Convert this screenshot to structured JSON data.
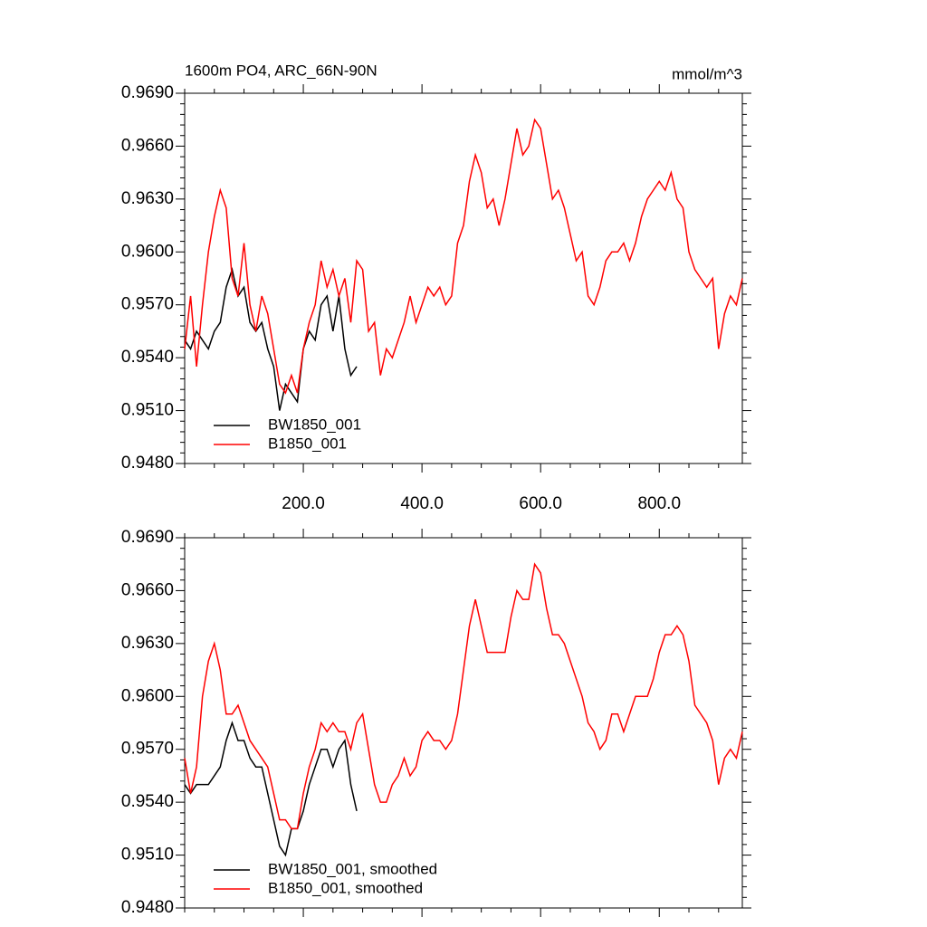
{
  "chart_data": [
    {
      "type": "line",
      "title": "1600m PO4, ARC_66N-90N",
      "units": "mmol/m^3",
      "x": [
        0,
        10,
        20,
        30,
        40,
        50,
        60,
        70,
        80,
        90,
        100,
        110,
        120,
        130,
        140,
        150,
        160,
        170,
        180,
        190,
        200,
        210,
        220,
        230,
        240,
        250,
        260,
        270,
        280,
        290,
        300,
        310,
        320,
        330,
        340,
        350,
        360,
        370,
        380,
        390,
        400,
        410,
        420,
        430,
        440,
        450,
        460,
        470,
        480,
        490,
        500,
        510,
        520,
        530,
        540,
        550,
        560,
        570,
        580,
        590,
        600,
        610,
        620,
        630,
        640,
        650,
        660,
        670,
        680,
        690,
        700,
        710,
        720,
        730,
        740,
        750,
        760,
        770,
        780,
        790,
        800,
        810,
        820,
        830,
        840,
        850,
        860,
        870,
        880,
        890,
        900,
        910,
        920,
        930,
        940
      ],
      "series": [
        {
          "name": "BW1850_001",
          "color": "#000000",
          "values": [
            0.955,
            0.9545,
            0.9555,
            0.955,
            0.9545,
            0.9555,
            0.956,
            0.958,
            0.959,
            0.9575,
            0.958,
            0.956,
            0.9555,
            0.956,
            0.9545,
            0.9535,
            0.951,
            0.9525,
            0.952,
            0.9515,
            0.9545,
            0.9555,
            0.955,
            0.957,
            0.9575,
            0.9555,
            0.9575,
            0.9545,
            0.953,
            0.9535,
            null,
            null,
            null,
            null,
            null,
            null,
            null,
            null,
            null,
            null,
            null,
            null,
            null,
            null,
            null,
            null,
            null,
            null,
            null,
            null,
            null,
            null,
            null,
            null,
            null,
            null,
            null,
            null,
            null,
            null,
            null,
            null,
            null,
            null,
            null,
            null,
            null,
            null,
            null,
            null,
            null,
            null,
            null,
            null,
            null,
            null,
            null,
            null,
            null,
            null,
            null,
            null,
            null,
            null,
            null,
            null,
            null,
            null,
            null,
            null,
            null,
            null,
            null,
            null,
            null
          ]
        },
        {
          "name": "B1850_001",
          "color": "#ff0000",
          "values": [
            0.9545,
            0.9575,
            0.9535,
            0.957,
            0.96,
            0.962,
            0.9635,
            0.9625,
            0.9585,
            0.9575,
            0.9605,
            0.957,
            0.9555,
            0.9575,
            0.9565,
            0.9545,
            0.9525,
            0.952,
            0.953,
            0.952,
            0.9545,
            0.956,
            0.957,
            0.9595,
            0.958,
            0.959,
            0.9575,
            0.9585,
            0.956,
            0.9595,
            0.959,
            0.9555,
            0.956,
            0.953,
            0.9545,
            0.954,
            0.955,
            0.956,
            0.9575,
            0.956,
            0.957,
            0.958,
            0.9575,
            0.958,
            0.957,
            0.9575,
            0.9605,
            0.9615,
            0.964,
            0.9655,
            0.9645,
            0.9625,
            0.963,
            0.9615,
            0.963,
            0.965,
            0.967,
            0.9655,
            0.966,
            0.9675,
            0.967,
            0.965,
            0.963,
            0.9635,
            0.9625,
            0.961,
            0.9595,
            0.96,
            0.9575,
            0.957,
            0.958,
            0.9595,
            0.96,
            0.96,
            0.9605,
            0.9595,
            0.9605,
            0.962,
            0.963,
            0.9635,
            0.964,
            0.9635,
            0.9645,
            0.963,
            0.9625,
            0.96,
            0.959,
            0.9585,
            0.958,
            0.9585,
            0.9545,
            0.9565,
            0.9575,
            0.957,
            0.9585
          ]
        }
      ],
      "xlim": [
        0,
        940
      ],
      "ylim": [
        0.948,
        0.969
      ],
      "xticks": [
        {
          "value": 200,
          "label": "200.0"
        },
        {
          "value": 400,
          "label": "400.0"
        },
        {
          "value": 600,
          "label": "600.0"
        },
        {
          "value": 800,
          "label": "800.0"
        }
      ],
      "yticks": [
        {
          "value": 0.948,
          "label": "0.9480"
        },
        {
          "value": 0.951,
          "label": "0.9510"
        },
        {
          "value": 0.954,
          "label": "0.9540"
        },
        {
          "value": 0.957,
          "label": "0.9570"
        },
        {
          "value": 0.96,
          "label": "0.9600"
        },
        {
          "value": 0.963,
          "label": "0.9630"
        },
        {
          "value": 0.966,
          "label": "0.9660"
        },
        {
          "value": 0.969,
          "label": "0.9690"
        }
      ],
      "legend": "lower left"
    },
    {
      "type": "line",
      "x": [
        0,
        10,
        20,
        30,
        40,
        50,
        60,
        70,
        80,
        90,
        100,
        110,
        120,
        130,
        140,
        150,
        160,
        170,
        180,
        190,
        200,
        210,
        220,
        230,
        240,
        250,
        260,
        270,
        280,
        290,
        300,
        310,
        320,
        330,
        340,
        350,
        360,
        370,
        380,
        390,
        400,
        410,
        420,
        430,
        440,
        450,
        460,
        470,
        480,
        490,
        500,
        510,
        520,
        530,
        540,
        550,
        560,
        570,
        580,
        590,
        600,
        610,
        620,
        630,
        640,
        650,
        660,
        670,
        680,
        690,
        700,
        710,
        720,
        730,
        740,
        750,
        760,
        770,
        780,
        790,
        800,
        810,
        820,
        830,
        840,
        850,
        860,
        870,
        880,
        890,
        900,
        910,
        920,
        930,
        940
      ],
      "series": [
        {
          "name": "BW1850_001, smoothed",
          "color": "#000000",
          "values": [
            0.955,
            0.9545,
            0.955,
            0.955,
            0.955,
            0.9555,
            0.956,
            0.9575,
            0.9585,
            0.9575,
            0.9575,
            0.9565,
            0.956,
            0.956,
            0.9545,
            0.953,
            0.9515,
            0.951,
            0.9525,
            0.9525,
            0.9535,
            0.955,
            0.956,
            0.957,
            0.957,
            0.956,
            0.957,
            0.9575,
            0.955,
            0.9535,
            null,
            null,
            null,
            null,
            null,
            null,
            null,
            null,
            null,
            null,
            null,
            null,
            null,
            null,
            null,
            null,
            null,
            null,
            null,
            null,
            null,
            null,
            null,
            null,
            null,
            null,
            null,
            null,
            null,
            null,
            null,
            null,
            null,
            null,
            null,
            null,
            null,
            null,
            null,
            null,
            null,
            null,
            null,
            null,
            null,
            null,
            null,
            null,
            null,
            null,
            null,
            null,
            null,
            null,
            null,
            null,
            null,
            null,
            null,
            null,
            null,
            null,
            null,
            null,
            null
          ]
        },
        {
          "name": "B1850_001, smoothed",
          "color": "#ff0000",
          "values": [
            0.9565,
            0.9545,
            0.956,
            0.96,
            0.962,
            0.963,
            0.9615,
            0.959,
            0.959,
            0.9595,
            0.9585,
            0.9575,
            0.957,
            0.9565,
            0.956,
            0.9545,
            0.953,
            0.953,
            0.9525,
            0.9525,
            0.9545,
            0.956,
            0.957,
            0.9585,
            0.958,
            0.9585,
            0.958,
            0.958,
            0.957,
            0.9585,
            0.959,
            0.957,
            0.955,
            0.954,
            0.954,
            0.955,
            0.9555,
            0.9565,
            0.9555,
            0.956,
            0.9575,
            0.958,
            0.9575,
            0.9575,
            0.957,
            0.9575,
            0.959,
            0.9615,
            0.964,
            0.9655,
            0.964,
            0.9625,
            0.9625,
            0.9625,
            0.9625,
            0.9645,
            0.966,
            0.9655,
            0.9655,
            0.9675,
            0.967,
            0.965,
            0.9635,
            0.9635,
            0.963,
            0.962,
            0.961,
            0.96,
            0.9585,
            0.958,
            0.957,
            0.9575,
            0.959,
            0.959,
            0.958,
            0.959,
            0.96,
            0.96,
            0.96,
            0.961,
            0.9625,
            0.9635,
            0.9635,
            0.964,
            0.9635,
            0.962,
            0.9595,
            0.959,
            0.9585,
            0.9575,
            0.955,
            0.9565,
            0.957,
            0.9565,
            0.958
          ]
        }
      ],
      "xlim": [
        0,
        940
      ],
      "ylim": [
        0.948,
        0.969
      ],
      "xticks": [
        200,
        400,
        600,
        800
      ],
      "show_xtick_labels": false,
      "yticks": [
        {
          "value": 0.948,
          "label": "0.9480"
        },
        {
          "value": 0.951,
          "label": "0.9510"
        },
        {
          "value": 0.954,
          "label": "0.9540"
        },
        {
          "value": 0.957,
          "label": "0.9570"
        },
        {
          "value": 0.96,
          "label": "0.9600"
        },
        {
          "value": 0.963,
          "label": "0.9630"
        },
        {
          "value": 0.966,
          "label": "0.9660"
        },
        {
          "value": 0.969,
          "label": "0.9690"
        }
      ],
      "legend": "lower left"
    }
  ]
}
